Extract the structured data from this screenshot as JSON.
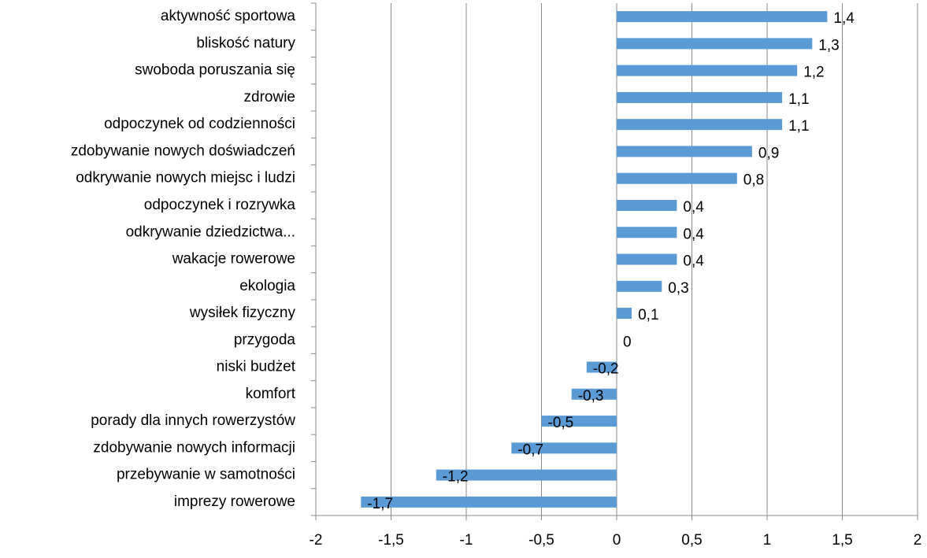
{
  "chart_data": {
    "type": "barh",
    "categories": [
      "aktywność sportowa",
      "bliskość natury",
      "swoboda poruszania się",
      "zdrowie",
      "odpoczynek od codzienności",
      "zdobywanie nowych doświadczeń",
      "odkrywanie nowych miejsc i ludzi",
      "odpoczynek i rozrywka",
      "odkrywanie dziedzictwa...",
      "wakacje rowerowe",
      "ekologia",
      "wysiłek fizyczny",
      "przygoda",
      "niski budżet",
      "komfort",
      "porady dla innych rowerzystów",
      "zdobywanie nowych informacji",
      "przebywanie w samotności",
      "imprezy rowerowe"
    ],
    "values": [
      1.4,
      1.3,
      1.2,
      1.1,
      1.1,
      0.9,
      0.8,
      0.4,
      0.4,
      0.4,
      0.3,
      0.1,
      0,
      -0.2,
      -0.3,
      -0.5,
      -0.7,
      -1.2,
      -1.7
    ],
    "value_labels": [
      "1,4",
      "1,3",
      "1,2",
      "1,1",
      "1,1",
      "0,9",
      "0,8",
      "0,4",
      "0,4",
      "0,4",
      "0,3",
      "0,1",
      "0",
      "-0,2",
      "-0,3",
      "-0,5",
      "-0,7",
      "-1,2",
      "-1,7"
    ],
    "color": "#5b9bd5",
    "xlim": [
      -2,
      2
    ],
    "xticks": [
      -2,
      {
        "value": -1.5,
        "label": "-1,5"
      },
      -1,
      {
        "value": -0.5,
        "label": "-0,5"
      },
      0,
      {
        "value": 0.5,
        "label": "0,5"
      },
      1,
      {
        "value": 1.5,
        "label": "1,5"
      },
      2
    ],
    "grid": true
  }
}
